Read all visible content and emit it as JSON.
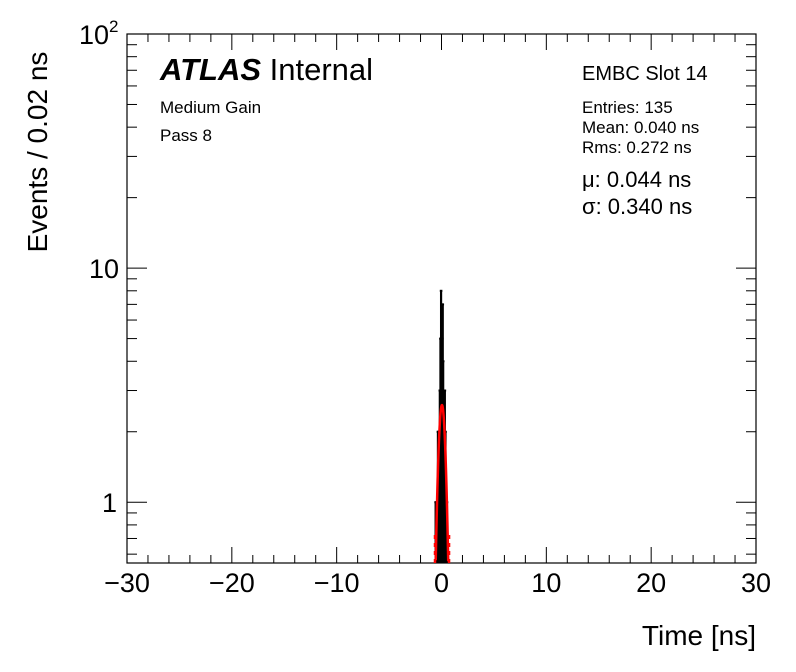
{
  "chart_data": {
    "type": "histogram",
    "title_bold": "ATLAS",
    "title_rest": " Internal",
    "subtitle_lines": [
      "Medium Gain",
      "Pass 8"
    ],
    "slot_label": "EMBC Slot 14",
    "stats": {
      "entries": "Entries: 135",
      "mean": "Mean: 0.040 ns",
      "rms": "Rms: 0.272 ns"
    },
    "fit": {
      "mu_label": "μ: 0.044 ns",
      "sigma_label": "σ: 0.340 ns",
      "mu": 0.044,
      "sigma": 0.34,
      "amplitude": 2.6,
      "color": "#ff0000"
    },
    "xlabel": "Time [ns]",
    "ylabel": "Events / 0.02 ns",
    "xlim": [
      -30,
      30
    ],
    "ylim": [
      0.55,
      100
    ],
    "yscale": "log",
    "xticks": [
      -30,
      -20,
      -10,
      0,
      10,
      20,
      30
    ],
    "xtick_labels": [
      "−30",
      "−20",
      "−10",
      "0",
      "10",
      "20",
      "30"
    ],
    "ytick_labels": [
      "1",
      "10",
      "10^2"
    ],
    "bin_width": 0.02,
    "bins": [
      {
        "x": -0.56,
        "count": 1
      },
      {
        "x": -0.48,
        "count": 1
      },
      {
        "x": -0.4,
        "count": 1
      },
      {
        "x": -0.34,
        "count": 2
      },
      {
        "x": -0.28,
        "count": 2
      },
      {
        "x": -0.22,
        "count": 2
      },
      {
        "x": -0.16,
        "count": 3
      },
      {
        "x": -0.1,
        "count": 5
      },
      {
        "x": -0.04,
        "count": 8
      },
      {
        "x": 0.0,
        "count": 7
      },
      {
        "x": 0.04,
        "count": 6
      },
      {
        "x": 0.08,
        "count": 5
      },
      {
        "x": 0.12,
        "count": 7
      },
      {
        "x": 0.16,
        "count": 4
      },
      {
        "x": 0.2,
        "count": 3
      },
      {
        "x": 0.26,
        "count": 2
      },
      {
        "x": 0.32,
        "count": 3
      },
      {
        "x": 0.38,
        "count": 2
      },
      {
        "x": 0.44,
        "count": 1
      },
      {
        "x": 0.52,
        "count": 1
      }
    ],
    "colors": {
      "data": "#000000",
      "fit": "#ff0000",
      "frame": "#000000"
    }
  }
}
